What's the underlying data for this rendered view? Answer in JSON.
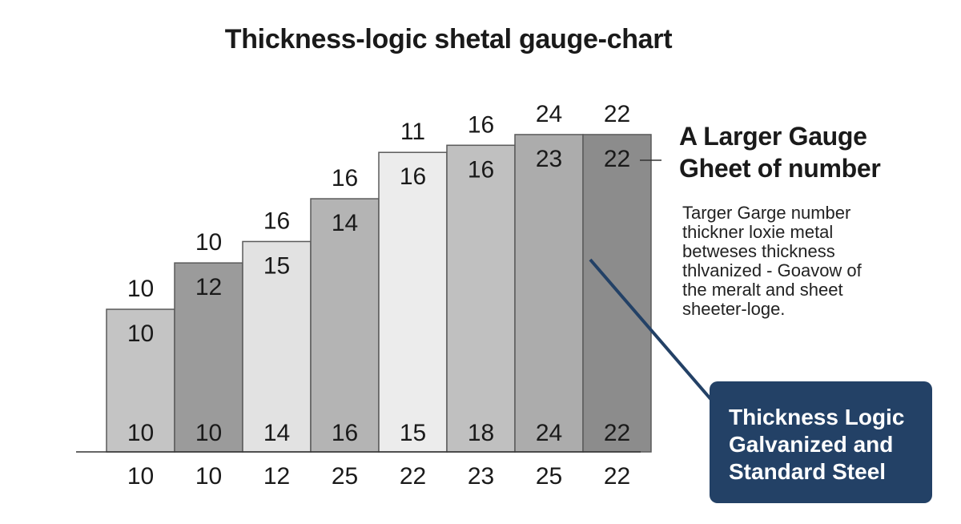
{
  "title": "Thickness-logic shetal gauge-chart",
  "callout": {
    "heading": [
      "A Larger Gauge",
      "Gheet of number"
    ],
    "description": [
      "Targer Garge number",
      "thickner loxie metal",
      "betweses thickness",
      "thlvanized - Goavow of",
      "the meralt and sheet",
      "sheeter-loge."
    ]
  },
  "badge": {
    "lines": [
      "Thickness Logic",
      "Galvanized and",
      "Standard Steel"
    ],
    "color": "#234166"
  },
  "chart_data": {
    "type": "bar",
    "title": "Thickness-logic shetal gauge-chart",
    "xlabel": "",
    "ylabel": "",
    "grid": false,
    "relative_heights": [
      0.4,
      0.53,
      0.59,
      0.71,
      0.84,
      0.86,
      0.89,
      0.89
    ],
    "above_labels": [
      "10",
      "10",
      "16",
      "16",
      "11",
      "16",
      "24",
      "22"
    ],
    "top_inner_labels": [
      "10",
      "12",
      "15",
      "14",
      "16",
      "16",
      "23",
      "22"
    ],
    "bottom_inner_labels": [
      "10",
      "10",
      "14",
      "16",
      "15",
      "18",
      "24",
      "22"
    ],
    "axis_labels": [
      "10",
      "10",
      "12",
      "25",
      "22",
      "23",
      "25",
      "22"
    ],
    "bar_colors": [
      "#c4c4c4",
      "#9b9b9b",
      "#e2e2e2",
      "#b4b4b4",
      "#ececec",
      "#c0c0c0",
      "#acacac",
      "#8c8c8c"
    ]
  }
}
